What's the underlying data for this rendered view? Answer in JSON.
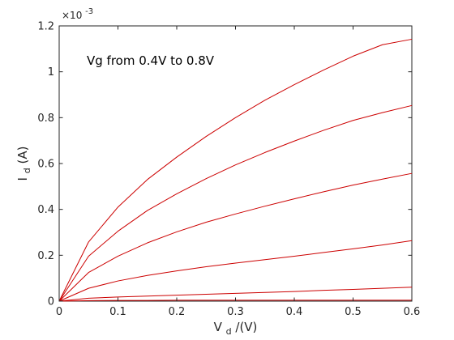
{
  "chart_data": {
    "type": "line",
    "xlim": [
      0,
      0.6
    ],
    "ylim": [
      0,
      1.2
    ],
    "xticks": [
      0,
      0.1,
      0.2,
      0.3,
      0.4,
      0.5,
      0.6
    ],
    "xtick_labels": [
      "0",
      "0.1",
      "0.2",
      "0.3",
      "0.4",
      "0.5",
      "0.6"
    ],
    "yticks": [
      0,
      0.2,
      0.4,
      0.6,
      0.8,
      1.0,
      1.2
    ],
    "ytick_labels": [
      "0",
      "0.2",
      "0.4",
      "0.6",
      "0.8",
      "1",
      "1.2"
    ],
    "y_exponent_base": "×10",
    "y_exponent_power": "-3",
    "xlabel_main": "V",
    "xlabel_sub": "d",
    "xlabel_rest": "/(V)",
    "ylabel_main": "I",
    "ylabel_sub": "d",
    "ylabel_rest": "(A)",
    "annotation": "Vg from 0.4V to 0.8V",
    "grid": false,
    "series_color": "#cc0000",
    "x": [
      0,
      0.05,
      0.1,
      0.15,
      0.2,
      0.25,
      0.3,
      0.35,
      0.4,
      0.45,
      0.5,
      0.55,
      0.6
    ],
    "series": [
      {
        "values": [
          0,
          0.002,
          0.003,
          0.003,
          0.004,
          0.004,
          0.004,
          0.004,
          0.004,
          0.004,
          0.004,
          0.004,
          0.004
        ]
      },
      {
        "values": [
          0,
          0.013,
          0.018,
          0.022,
          0.026,
          0.03,
          0.034,
          0.038,
          0.042,
          0.047,
          0.051,
          0.056,
          0.061
        ]
      },
      {
        "values": [
          0,
          0.056,
          0.088,
          0.112,
          0.132,
          0.15,
          0.166,
          0.181,
          0.196,
          0.212,
          0.228,
          0.245,
          0.264
        ]
      },
      {
        "values": [
          0,
          0.125,
          0.196,
          0.254,
          0.302,
          0.344,
          0.38,
          0.414,
          0.446,
          0.477,
          0.506,
          0.532,
          0.557
        ]
      },
      {
        "values": [
          0,
          0.196,
          0.305,
          0.395,
          0.468,
          0.534,
          0.594,
          0.648,
          0.698,
          0.745,
          0.788,
          0.822,
          0.853
        ]
      },
      {
        "values": [
          0,
          0.258,
          0.41,
          0.53,
          0.628,
          0.718,
          0.8,
          0.876,
          0.944,
          1.008,
          1.068,
          1.118,
          1.142
        ]
      }
    ]
  }
}
